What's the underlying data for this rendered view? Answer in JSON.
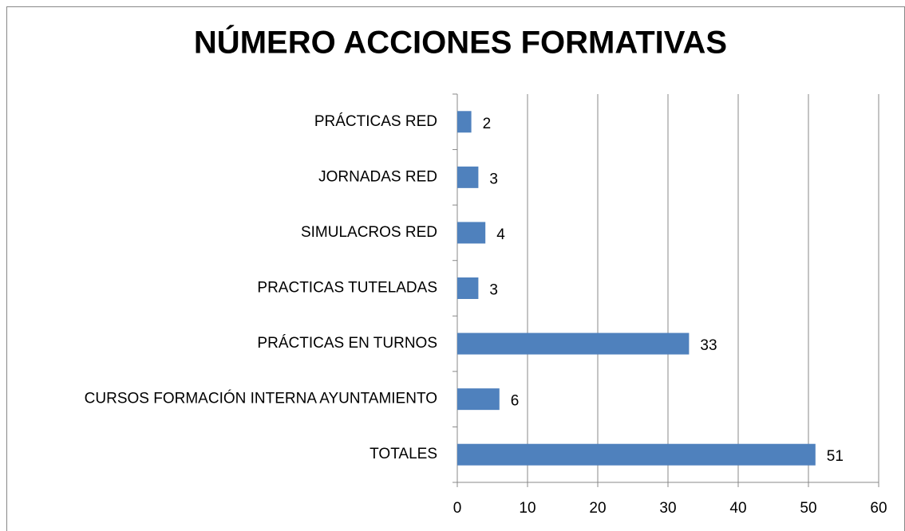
{
  "chart_data": {
    "type": "bar",
    "orientation": "horizontal",
    "title": "NÚMERO ACCIONES FORMATIVAS",
    "categories": [
      "PRÁCTICAS RED",
      "JORNADAS RED",
      "SIMULACROS RED",
      "PRACTICAS TUTELADAS",
      "PRÁCTICAS EN TURNOS",
      "CURSOS FORMACIÓN INTERNA AYUNTAMIENTO",
      "TOTALES"
    ],
    "values": [
      2,
      3,
      4,
      3,
      33,
      6,
      51
    ],
    "color": "#4f81bd",
    "xlim": [
      0,
      60
    ],
    "xticks": [
      0,
      10,
      20,
      30,
      40,
      50,
      60
    ],
    "grid": true
  }
}
